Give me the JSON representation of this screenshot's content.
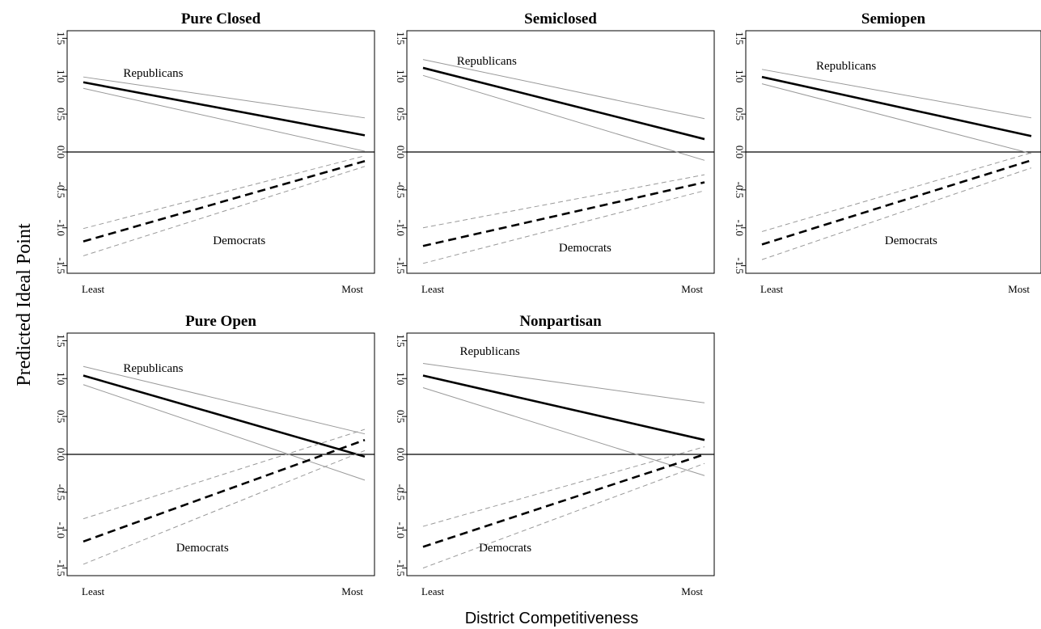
{
  "figure": {
    "ylabel": "Predicted Ideal Point",
    "xlabel": "District Competitiveness"
  },
  "style": {
    "estimate_color": "#000000",
    "ci_republican_color": "#999999",
    "ci_democrat_color": "#999999",
    "zero_line_color": "#000000"
  },
  "chart_data": [
    {
      "type": "line",
      "title": "Pure Closed",
      "categories": [
        "Least",
        "Most"
      ],
      "ylim": [
        -1.6,
        1.6
      ],
      "yticks": [
        -1.5,
        -1.0,
        -0.5,
        0.0,
        0.5,
        1.0,
        1.5
      ],
      "ytick_labels": [
        "-1.5",
        "-1.0",
        "-0.5",
        "0.0",
        "0.5",
        "1.0",
        "1.5"
      ],
      "reference_line_y": 0,
      "series": [
        {
          "name": "Republicans",
          "values": [
            0.92,
            0.22
          ],
          "ci_upper": [
            0.99,
            0.45
          ],
          "ci_lower": [
            0.84,
            0.01
          ]
        },
        {
          "name": "Democrats",
          "values": [
            -1.18,
            -0.12
          ],
          "ci_upper": [
            -1.01,
            -0.05
          ],
          "ci_lower": [
            -1.37,
            -0.19
          ]
        }
      ]
    },
    {
      "type": "line",
      "title": "Semiclosed",
      "categories": [
        "Least",
        "Most"
      ],
      "ylim": [
        -1.6,
        1.6
      ],
      "yticks": [
        -1.5,
        -1.0,
        -0.5,
        0.0,
        0.5,
        1.0,
        1.5
      ],
      "ytick_labels": [
        "-1.5",
        "-1.0",
        "-0.5",
        "0.0",
        "0.5",
        "1.0",
        "1.5"
      ],
      "reference_line_y": 0,
      "series": [
        {
          "name": "Republicans",
          "values": [
            1.11,
            0.17
          ],
          "ci_upper": [
            1.22,
            0.44
          ],
          "ci_lower": [
            1.01,
            -0.11
          ]
        },
        {
          "name": "Democrats",
          "values": [
            -1.24,
            -0.4
          ],
          "ci_upper": [
            -1.0,
            -0.3
          ],
          "ci_lower": [
            -1.47,
            -0.51
          ]
        }
      ]
    },
    {
      "type": "line",
      "title": "Semiopen",
      "categories": [
        "Least",
        "Most"
      ],
      "ylim": [
        -1.6,
        1.6
      ],
      "yticks": [
        -1.5,
        -1.0,
        -0.5,
        0.0,
        0.5,
        1.0,
        1.5
      ],
      "ytick_labels": [
        "-1.5",
        "-1.0",
        "-0.5",
        "0.0",
        "0.5",
        "1.0",
        "1.5"
      ],
      "reference_line_y": 0,
      "series": [
        {
          "name": "Republicans",
          "values": [
            0.99,
            0.21
          ],
          "ci_upper": [
            1.09,
            0.45
          ],
          "ci_lower": [
            0.9,
            -0.02
          ]
        },
        {
          "name": "Democrats",
          "values": [
            -1.22,
            -0.11
          ],
          "ci_upper": [
            -1.05,
            -0.01
          ],
          "ci_lower": [
            -1.42,
            -0.21
          ]
        }
      ]
    },
    {
      "type": "line",
      "title": "Pure Open",
      "categories": [
        "Least",
        "Most"
      ],
      "ylim": [
        -1.6,
        1.6
      ],
      "yticks": [
        -1.5,
        -1.0,
        -0.5,
        0.0,
        0.5,
        1.0,
        1.5
      ],
      "ytick_labels": [
        "-1.5",
        "-1.0",
        "-0.5",
        "0.0",
        "0.5",
        "1.0",
        "1.5"
      ],
      "reference_line_y": 0,
      "series": [
        {
          "name": "Republicans",
          "values": [
            1.04,
            -0.03
          ],
          "ci_upper": [
            1.16,
            0.27
          ],
          "ci_lower": [
            0.92,
            -0.34
          ]
        },
        {
          "name": "Democrats",
          "values": [
            -1.15,
            0.19
          ],
          "ci_upper": [
            -0.85,
            0.33
          ],
          "ci_lower": [
            -1.45,
            0.05
          ]
        }
      ]
    },
    {
      "type": "line",
      "title": "Nonpartisan",
      "categories": [
        "Least",
        "Most"
      ],
      "ylim": [
        -1.6,
        1.6
      ],
      "yticks": [
        -1.5,
        -1.0,
        -0.5,
        0.0,
        0.5,
        1.0,
        1.5
      ],
      "ytick_labels": [
        "-1.5",
        "-1.0",
        "-0.5",
        "0.0",
        "0.5",
        "1.0",
        "1.5"
      ],
      "reference_line_y": 0,
      "series": [
        {
          "name": "Republicans",
          "values": [
            1.04,
            0.19
          ],
          "ci_upper": [
            1.2,
            0.68
          ],
          "ci_lower": [
            0.88,
            -0.28
          ]
        },
        {
          "name": "Democrats",
          "values": [
            -1.22,
            0.0
          ],
          "ci_upper": [
            -0.95,
            0.1
          ],
          "ci_lower": [
            -1.5,
            -0.12
          ]
        }
      ]
    }
  ]
}
